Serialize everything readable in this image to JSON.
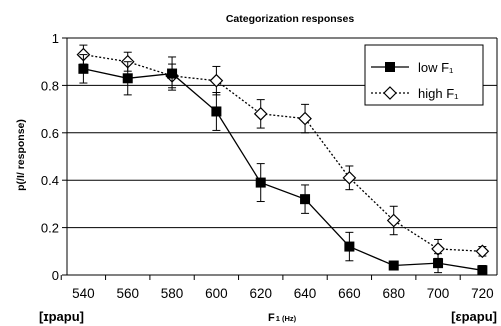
{
  "chart_data": {
    "type": "line",
    "title": "Categorization responses",
    "ylabel": "p(/I/ response)",
    "xlabel": "F",
    "xlabel_sub": "1 (Hz)",
    "x": [
      540,
      560,
      580,
      600,
      620,
      640,
      660,
      680,
      700,
      720
    ],
    "x_tick_labels": [
      "540",
      "560",
      "580",
      "600",
      "620",
      "640",
      "660",
      "680",
      "700",
      "720"
    ],
    "y_ticks": [
      "0",
      "0.2",
      "0.4",
      "0.6",
      "0.8",
      "1"
    ],
    "ylim": [
      0,
      1
    ],
    "grid": "horizontal",
    "legend_position": "top-right",
    "endpoint_labels": {
      "left": "[ɪpapu]",
      "right": "[εpapu]"
    },
    "series": [
      {
        "name": "low F₁",
        "marker": "filled-square",
        "line": "solid",
        "values": [
          0.87,
          0.83,
          0.85,
          0.69,
          0.39,
          0.32,
          0.12,
          0.04,
          0.05,
          0.02
        ],
        "error": [
          0.06,
          0.07,
          0.07,
          0.08,
          0.08,
          0.06,
          0.06,
          0.01,
          0.04,
          0.02
        ]
      },
      {
        "name": "high F₁",
        "marker": "open-diamond",
        "line": "dotted",
        "values": [
          0.93,
          0.9,
          0.84,
          0.82,
          0.68,
          0.66,
          0.41,
          0.23,
          0.11,
          0.1
        ],
        "error": [
          0.04,
          0.04,
          0.05,
          0.06,
          0.06,
          0.06,
          0.05,
          0.06,
          0.04,
          0.02
        ]
      }
    ]
  }
}
